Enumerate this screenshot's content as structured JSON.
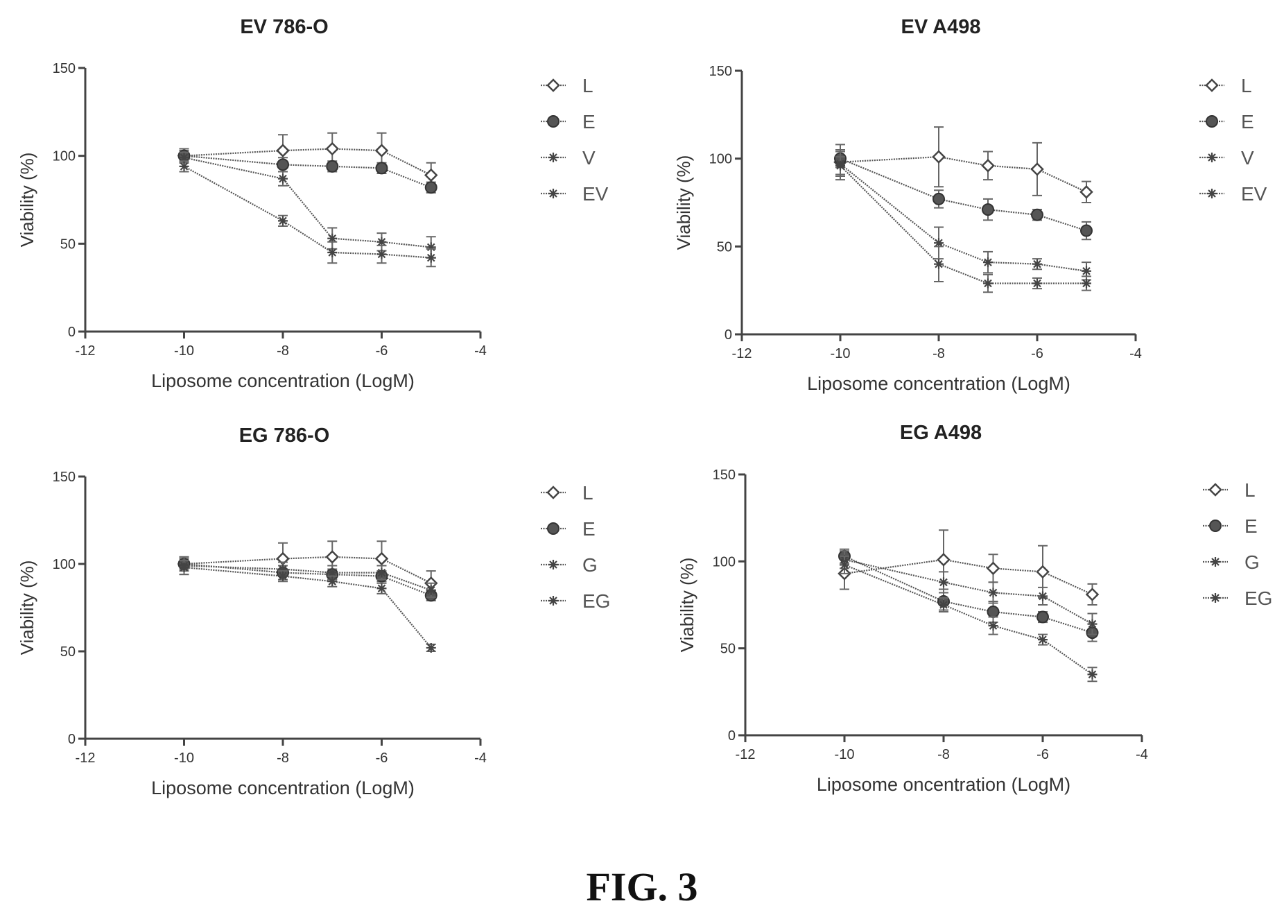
{
  "figure_caption": "FIG. 3",
  "chart_data": [
    {
      "type": "line",
      "title": "EV 786-O",
      "xlabel": "Liposome concentration (LogM)",
      "ylabel": "Viability (%)",
      "xlim": [
        -12,
        -4
      ],
      "ylim": [
        0,
        150
      ],
      "xticks": [
        "-12",
        "-10",
        "-8",
        "-6",
        "-4"
      ],
      "yticks": [
        "0",
        "50",
        "100",
        "150"
      ],
      "legend_position": "right",
      "x": [
        -10,
        -8,
        -7,
        -6,
        -5
      ],
      "series": [
        {
          "name": "L",
          "marker": "diamond",
          "values": [
            100,
            103,
            104,
            103,
            89
          ],
          "errors": [
            4,
            9,
            9,
            10,
            7
          ]
        },
        {
          "name": "E",
          "marker": "filled-circle",
          "values": [
            100,
            95,
            94,
            93,
            82
          ],
          "errors": [
            3,
            4,
            3,
            3,
            3
          ]
        },
        {
          "name": "V",
          "marker": "star",
          "values": [
            99,
            87,
            53,
            51,
            48
          ],
          "errors": [
            3,
            4,
            6,
            5,
            6
          ]
        },
        {
          "name": "EV",
          "marker": "star",
          "values": [
            94,
            63,
            45,
            44,
            42
          ],
          "errors": [
            3,
            3,
            6,
            5,
            5
          ]
        }
      ]
    },
    {
      "type": "line",
      "title": "EV A498",
      "xlabel": "Liposome concentration (LogM)",
      "ylabel": "Viability (%)",
      "xlim": [
        -12,
        -4
      ],
      "ylim": [
        0,
        150
      ],
      "xticks": [
        "-12",
        "-10",
        "-8",
        "-6",
        "-4"
      ],
      "yticks": [
        "0",
        "50",
        "100",
        "150"
      ],
      "legend_position": "right",
      "x": [
        -10,
        -8,
        -7,
        -6,
        -5
      ],
      "series": [
        {
          "name": "L",
          "marker": "diamond",
          "values": [
            98,
            101,
            96,
            94,
            81
          ],
          "errors": [
            10,
            17,
            8,
            15,
            6
          ]
        },
        {
          "name": "E",
          "marker": "filled-circle",
          "values": [
            100,
            77,
            71,
            68,
            59
          ],
          "errors": [
            5,
            5,
            6,
            3,
            5
          ]
        },
        {
          "name": "V",
          "marker": "star",
          "values": [
            97,
            52,
            41,
            40,
            36
          ],
          "errors": [
            7,
            9,
            6,
            3,
            5
          ]
        },
        {
          "name": "EV",
          "marker": "star",
          "values": [
            96,
            40,
            29,
            29,
            29
          ],
          "errors": [
            5,
            10,
            5,
            3,
            4
          ]
        }
      ]
    },
    {
      "type": "line",
      "title": "EG 786-O",
      "xlabel": "Liposome concentration (LogM)",
      "ylabel": "Viability (%)",
      "xlim": [
        -12,
        -4
      ],
      "ylim": [
        0,
        150
      ],
      "xticks": [
        "-12",
        "-10",
        "-8",
        "-6",
        "-4"
      ],
      "yticks": [
        "0",
        "50",
        "100",
        "150"
      ],
      "legend_position": "right",
      "x": [
        -10,
        -8,
        -7,
        -6,
        -5
      ],
      "series": [
        {
          "name": "L",
          "marker": "diamond",
          "values": [
            100,
            103,
            104,
            103,
            89
          ],
          "errors": [
            4,
            9,
            9,
            10,
            7
          ]
        },
        {
          "name": "E",
          "marker": "filled-circle",
          "values": [
            100,
            95,
            94,
            93,
            82
          ],
          "errors": [
            3,
            4,
            3,
            3,
            3
          ]
        },
        {
          "name": "G",
          "marker": "star",
          "values": [
            99,
            97,
            95,
            95,
            85
          ],
          "errors": [
            5,
            4,
            4,
            4,
            4
          ]
        },
        {
          "name": "EG",
          "marker": "star",
          "values": [
            98,
            93,
            90,
            86,
            52
          ],
          "errors": [
            4,
            3,
            3,
            3,
            2
          ]
        }
      ]
    },
    {
      "type": "line",
      "title": "EG A498",
      "xlabel": "Liposome oncentration (LogM)",
      "ylabel": "Viability (%)",
      "xlim": [
        -12,
        -4
      ],
      "ylim": [
        0,
        150
      ],
      "xticks": [
        "-12",
        "-10",
        "-8",
        "-6",
        "-4"
      ],
      "yticks": [
        "0",
        "50",
        "100",
        "150"
      ],
      "legend_position": "right",
      "x": [
        -10,
        -8,
        -7,
        -6,
        -5
      ],
      "series": [
        {
          "name": "L",
          "marker": "diamond",
          "values": [
            93,
            101,
            96,
            94,
            81
          ],
          "errors": [
            9,
            17,
            8,
            15,
            6
          ]
        },
        {
          "name": "E",
          "marker": "filled-circle",
          "values": [
            103,
            77,
            71,
            68,
            59
          ],
          "errors": [
            4,
            5,
            6,
            3,
            5
          ]
        },
        {
          "name": "G",
          "marker": "star",
          "values": [
            101,
            88,
            82,
            80,
            64
          ],
          "errors": [
            5,
            6,
            6,
            5,
            6
          ]
        },
        {
          "name": "EG",
          "marker": "star",
          "values": [
            98,
            75,
            63,
            55,
            35
          ],
          "errors": [
            5,
            4,
            5,
            3,
            4
          ]
        }
      ]
    }
  ]
}
